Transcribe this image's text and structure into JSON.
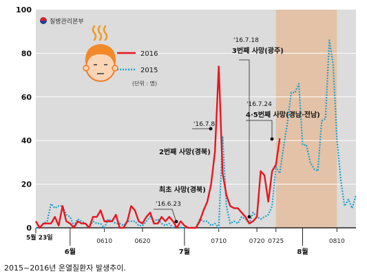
{
  "caption": "2015~2016년 온열질환자 발생추이.",
  "chart_data": {
    "type": "line",
    "logo_text": "질병관리본부",
    "ylim": [
      0,
      100
    ],
    "yticks": [
      0,
      20,
      40,
      60,
      80,
      100
    ],
    "x_labels": {
      "start": "5월 23일",
      "months": [
        {
          "label": "6월",
          "day": 9
        },
        {
          "label": "7월",
          "day": 39
        },
        {
          "label": "8월",
          "day": 70
        }
      ],
      "dates": [
        {
          "label": "0610",
          "day": 18
        },
        {
          "label": "0620",
          "day": 28
        },
        {
          "label": "0710",
          "day": 48
        },
        {
          "label": "0720",
          "day": 58
        },
        {
          "label": "0725",
          "day": 63
        },
        {
          "label": "0810",
          "day": 79
        }
      ]
    },
    "x_range": [
      0,
      84
    ],
    "shaded_region": {
      "from": 63,
      "to": 79
    },
    "series": [
      {
        "name": "2016",
        "color": "#e8141d",
        "style": "solid",
        "values": [
          3,
          0,
          2,
          2,
          2,
          5,
          1,
          10,
          3,
          2,
          0,
          3,
          2,
          2,
          0,
          5,
          5,
          8,
          3,
          3,
          3,
          6,
          0,
          0,
          3,
          10,
          8,
          3,
          2,
          5,
          7,
          2,
          2,
          5,
          3,
          5,
          3,
          0,
          3,
          1,
          0,
          0,
          0,
          3,
          8,
          12,
          20,
          35,
          74,
          25,
          15,
          10,
          9,
          9,
          7,
          5,
          2,
          3,
          5,
          26,
          24,
          12,
          26,
          29,
          41
        ]
      },
      {
        "name": "2015",
        "color": "#1a9fcc",
        "style": "dotted",
        "values": [
          0,
          0,
          2,
          3,
          11,
          9,
          10,
          10,
          6,
          5,
          1,
          4,
          3,
          2,
          0,
          3,
          2,
          2,
          0,
          4,
          3,
          2,
          2,
          1,
          3,
          3,
          3,
          1,
          1,
          3,
          5,
          3,
          4,
          2,
          1,
          2,
          0,
          1,
          0,
          0,
          0,
          0,
          0,
          4,
          3,
          3,
          1,
          2,
          0,
          42,
          10,
          2,
          3,
          2,
          5,
          4,
          2,
          7,
          5,
          4,
          5,
          6,
          10,
          28,
          25,
          37,
          48,
          62,
          62,
          66,
          38,
          38,
          30,
          27,
          26,
          49,
          50,
          86,
          75,
          41,
          22,
          10,
          13,
          9,
          15
        ]
      }
    ],
    "legend": {
      "placement": "top-left",
      "unit": "(단위 : 명)"
    },
    "annotations": [
      {
        "date": "'16.6.23",
        "text": "최초 사망(경북)"
      },
      {
        "date": "'16.7.8",
        "text": "2번째 사망(경북)"
      },
      {
        "date": "'16.7.18",
        "text": "3번째 사망(광주)"
      },
      {
        "date": "'16.7.24",
        "text": "4·5번째 사망(경남·전남)"
      }
    ]
  }
}
